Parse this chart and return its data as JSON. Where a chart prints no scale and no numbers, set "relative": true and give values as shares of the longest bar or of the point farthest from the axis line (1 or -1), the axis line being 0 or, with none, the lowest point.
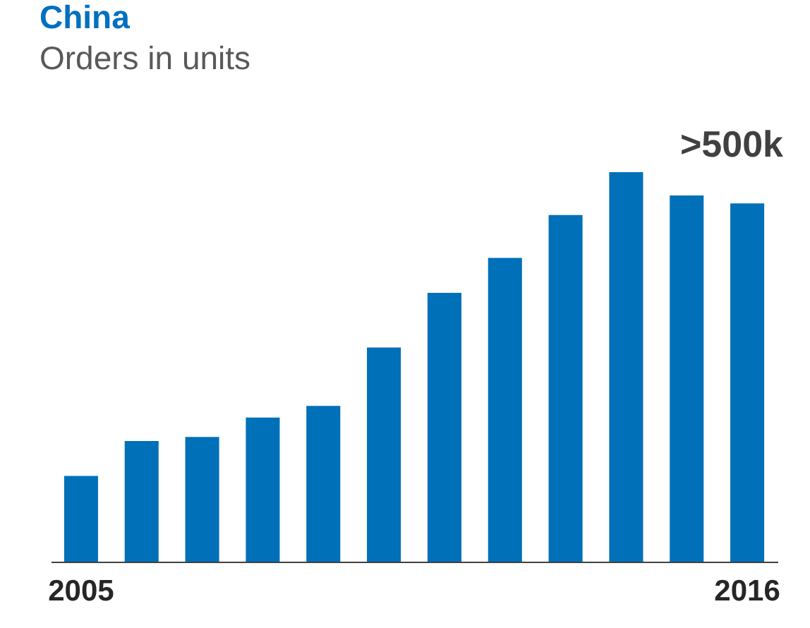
{
  "chart_data": {
    "type": "bar",
    "title": "China",
    "subtitle": "Orders in units",
    "categories": [
      "2005",
      null,
      null,
      null,
      null,
      null,
      null,
      null,
      null,
      null,
      null,
      "2016"
    ],
    "values": [
      0.22,
      0.31,
      0.32,
      0.37,
      0.4,
      0.55,
      0.69,
      0.78,
      0.89,
      1,
      0.94,
      0.92
    ],
    "color": "#0070b8",
    "relative": true,
    "annotations": [
      ">500k"
    ]
  }
}
